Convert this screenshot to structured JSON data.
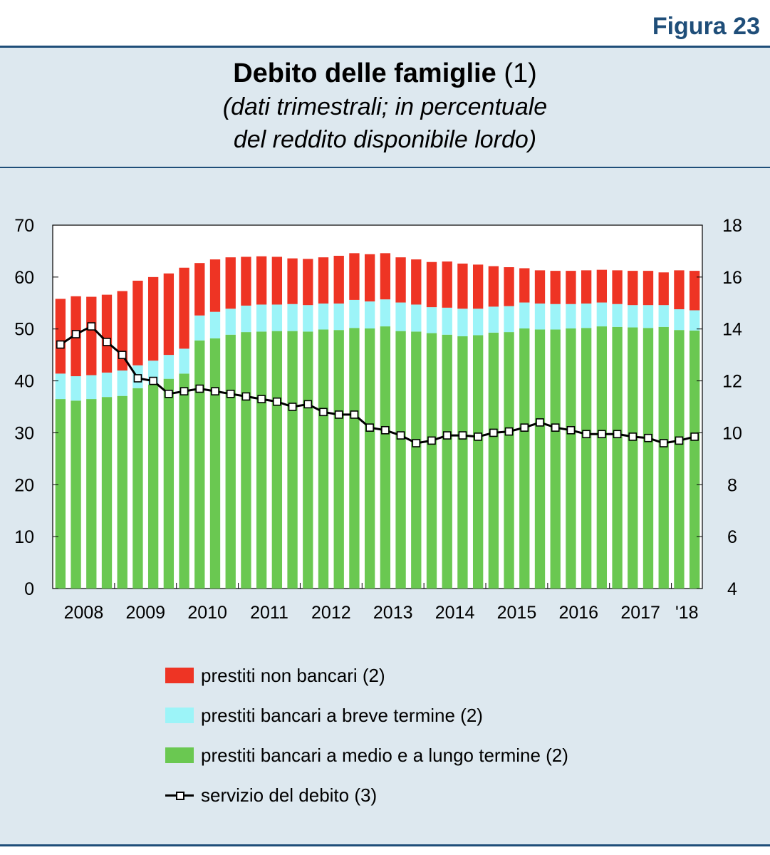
{
  "figure_label": "Figura 23",
  "title": {
    "main": "Debito delle famiglie",
    "note": "(1)",
    "subtitle_line1": "(dati trimestrali; in percentuale",
    "subtitle_line2": "del reddito disponibile lordo)"
  },
  "colors": {
    "non_bank": "#ee3424",
    "bank_short": "#9cf4f8",
    "bank_long": "#6ac851",
    "line": "#000000",
    "panel": "#dde8ef",
    "rule": "#1f4e79"
  },
  "legend": [
    {
      "label": "prestiti non bancari (2)",
      "swatch": "red-box"
    },
    {
      "label": "prestiti bancari a breve termine (2)",
      "swatch": "cyan-box"
    },
    {
      "label": "prestiti bancari a medio e a lungo termine (2)",
      "swatch": "green-box"
    },
    {
      "label": "servizio del debito (3)",
      "swatch": "line-square-marker"
    }
  ],
  "chart_data": {
    "type": "bar",
    "stacked": true,
    "x_labels": [
      "2008",
      "2009",
      "2010",
      "2011",
      "2012",
      "2013",
      "2014",
      "2015",
      "2016",
      "2017",
      "'18"
    ],
    "y_left": {
      "min": 0,
      "max": 70,
      "ticks": [
        0,
        10,
        20,
        30,
        40,
        50,
        60,
        70
      ]
    },
    "y_right": {
      "min": 4,
      "max": 18,
      "ticks": [
        4,
        6,
        8,
        10,
        12,
        14,
        16,
        18
      ]
    },
    "grid": false,
    "series": [
      {
        "name": "prestiti bancari a medio e a lungo termine (2)",
        "axis": "left",
        "values": [
          36.5,
          36.2,
          36.5,
          36.9,
          37.1,
          38.6,
          39.3,
          40.4,
          41.4,
          47.8,
          48.2,
          48.9,
          49.4,
          49.5,
          49.6,
          49.6,
          49.5,
          49.9,
          49.8,
          50.2,
          50.1,
          50.5,
          49.6,
          49.5,
          49.2,
          48.9,
          48.6,
          48.8,
          49.3,
          49.4,
          50.1,
          49.9,
          49.9,
          50.1,
          50.2,
          50.5,
          50.4,
          50.3,
          50.2,
          50.4,
          49.8,
          49.7
        ]
      },
      {
        "name": "prestiti bancari a breve termine (2)",
        "axis": "left",
        "values": [
          4.9,
          4.7,
          4.6,
          4.7,
          4.9,
          4.4,
          4.6,
          4.6,
          4.8,
          4.8,
          5.1,
          5.0,
          5.1,
          5.2,
          5.1,
          5.2,
          5.1,
          5.0,
          5.1,
          5.4,
          5.2,
          5.2,
          5.5,
          5.2,
          5.0,
          5.2,
          5.3,
          5.1,
          5.0,
          5.0,
          5.0,
          5.0,
          4.9,
          4.7,
          4.7,
          4.6,
          4.4,
          4.3,
          4.4,
          4.2,
          4.0,
          3.9
        ]
      },
      {
        "name": "prestiti non bancari (2)",
        "axis": "left",
        "values": [
          14.4,
          15.4,
          15.1,
          15.0,
          15.3,
          16.3,
          16.1,
          15.7,
          15.6,
          10.1,
          10.1,
          9.9,
          9.4,
          9.3,
          9.2,
          8.8,
          8.9,
          8.9,
          9.2,
          9.0,
          9.1,
          8.9,
          8.7,
          8.7,
          8.7,
          8.9,
          8.7,
          8.5,
          7.8,
          7.5,
          6.6,
          6.4,
          6.4,
          6.4,
          6.4,
          6.3,
          6.5,
          6.6,
          6.6,
          6.3,
          7.5,
          7.6
        ]
      },
      {
        "name": "servizio del debito (3)",
        "axis": "right",
        "type": "line",
        "values": [
          13.4,
          13.8,
          14.1,
          13.5,
          13.0,
          12.1,
          12.0,
          11.5,
          11.6,
          11.7,
          11.6,
          11.5,
          11.4,
          11.3,
          11.2,
          11.0,
          11.1,
          10.8,
          10.7,
          10.7,
          10.2,
          10.1,
          9.9,
          9.6,
          9.7,
          9.9,
          9.9,
          9.85,
          10.0,
          10.05,
          10.2,
          10.4,
          10.2,
          10.1,
          9.95,
          9.95,
          9.95,
          9.85,
          9.8,
          9.6,
          9.7,
          9.85
        ]
      }
    ]
  }
}
